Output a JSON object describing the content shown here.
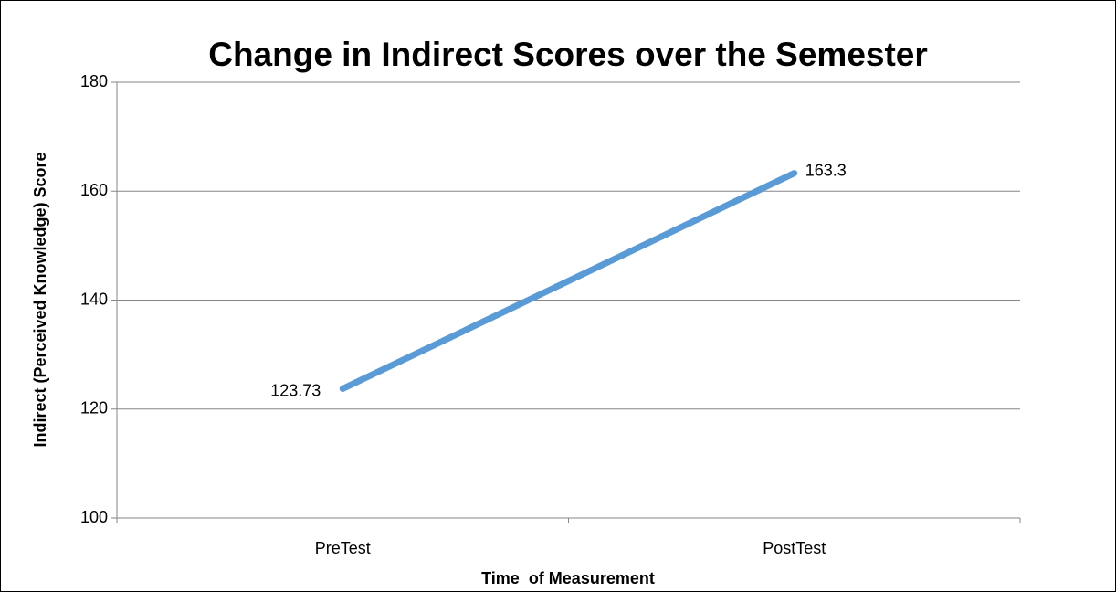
{
  "chart_data": {
    "type": "line",
    "title": "Change in Indirect Scores over the Semester",
    "x_label": "Time  of Measurement",
    "y_label": "Indirect (Perceived Knowledge) Score",
    "categories": [
      "PreTest",
      "PostTest"
    ],
    "series": [
      {
        "color": "#5b9bd5",
        "values": [
          123.73,
          163.3
        ]
      }
    ],
    "ylim": [
      100,
      180
    ],
    "yticks": [
      100,
      120,
      140,
      160,
      180
    ],
    "grid": true
  }
}
